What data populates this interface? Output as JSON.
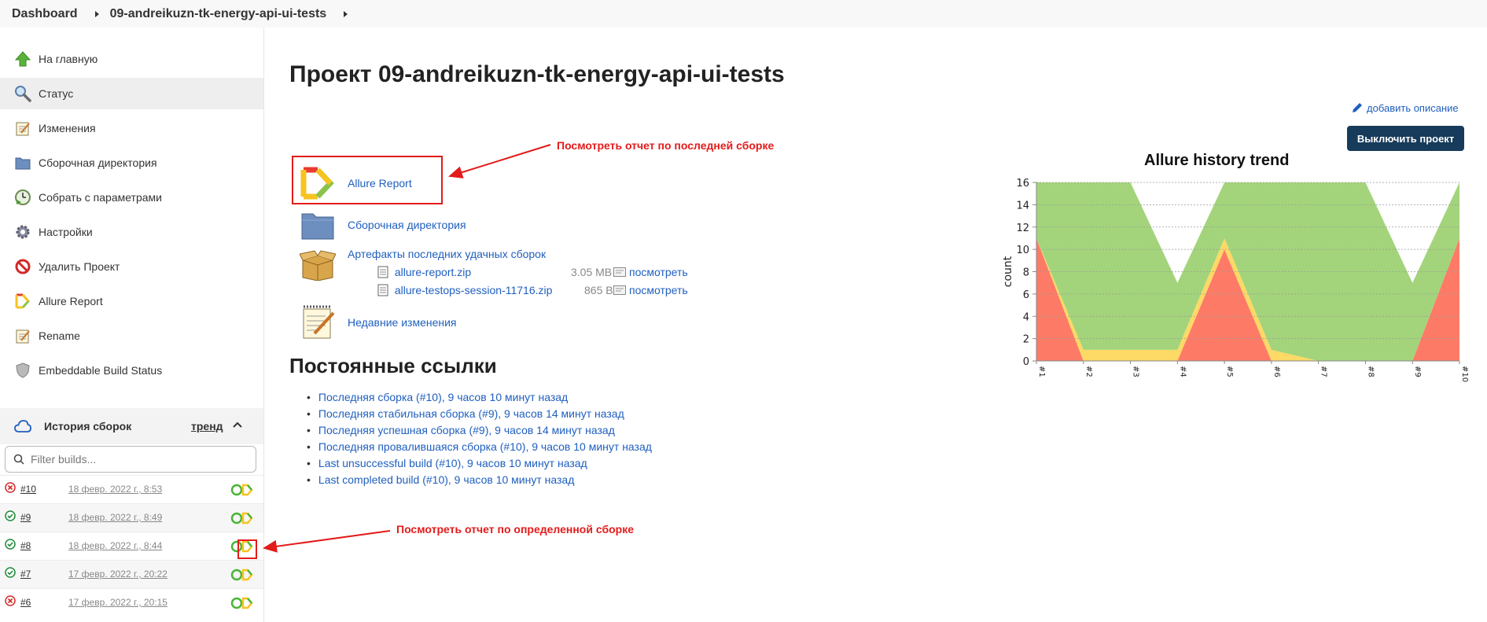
{
  "breadcrumb": {
    "items": [
      "Dashboard",
      "09-andreikuzn-tk-energy-api-ui-tests"
    ]
  },
  "sidebar": {
    "items": [
      {
        "label": "На главную",
        "icon": "up-arrow-icon"
      },
      {
        "label": "Статус",
        "icon": "search-icon"
      },
      {
        "label": "Изменения",
        "icon": "notepad-icon"
      },
      {
        "label": "Сборочная директория",
        "icon": "folder-icon"
      },
      {
        "label": "Собрать с параметрами",
        "icon": "clock-play-icon"
      },
      {
        "label": "Настройки",
        "icon": "gear-icon"
      },
      {
        "label": "Удалить Проект",
        "icon": "no-entry-icon"
      },
      {
        "label": "Allure Report",
        "icon": "allure-icon"
      },
      {
        "label": "Rename",
        "icon": "notepad-pen-icon"
      },
      {
        "label": "Embeddable Build Status",
        "icon": "shield-icon"
      }
    ]
  },
  "history": {
    "title": "История сборок",
    "trend": "тренд",
    "filter_placeholder": "Filter builds...",
    "builds": [
      {
        "num": "#10",
        "date": "18 февр. 2022 г., 8:53",
        "status": "failed"
      },
      {
        "num": "#9",
        "date": "18 февр. 2022 г., 8:49",
        "status": "success"
      },
      {
        "num": "#8",
        "date": "18 февр. 2022 г., 8:44",
        "status": "success"
      },
      {
        "num": "#7",
        "date": "17 февр. 2022 г., 20:22",
        "status": "success"
      },
      {
        "num": "#6",
        "date": "17 февр. 2022 г., 20:15",
        "status": "failed"
      }
    ]
  },
  "main": {
    "title": "Проект 09-andreikuzn-tk-energy-api-ui-tests",
    "add_description": "добавить описание",
    "disable_button": "Выключить проект",
    "links": {
      "allure": "Allure Report",
      "workspace": "Сборочная директория",
      "artifacts": "Артефакты последних удачных сборок",
      "recent_changes": "Недавние изменения"
    },
    "artifact_files": [
      {
        "name": "allure-report.zip",
        "size": "3.05 MB",
        "view": "посмотреть"
      },
      {
        "name": "allure-testops-session-11716.zip",
        "size": "865 B",
        "view": "посмотреть"
      }
    ],
    "permalinks_title": "Постоянные ссылки",
    "permalinks": [
      "Последняя сборка (#10), 9 часов 10 минут назад",
      "Последняя стабильная сборка (#9), 9 часов 14 минут назад",
      "Последняя успешная сборка (#9), 9 часов 14 минут назад",
      "Последняя провалившаяся сборка (#10), 9 часов 10 минут назад",
      "Last unsuccessful build (#10), 9 часов 10 минут назад",
      "Last completed build (#10), 9 часов 10 минут назад"
    ]
  },
  "annotations": {
    "last_build": "Посмотреть отчет по последней сборке",
    "specific_build": "Посмотреть отчет по определенной сборке"
  },
  "chart_data": {
    "type": "area",
    "title": "Allure history trend",
    "ylabel": "count",
    "xlabel": "",
    "ylim": [
      0,
      16
    ],
    "yticks": [
      0,
      2,
      4,
      6,
      8,
      10,
      12,
      14,
      16
    ],
    "categories": [
      "#1",
      "#2",
      "#3",
      "#4",
      "#5",
      "#6",
      "#7",
      "#8",
      "#9",
      "#10"
    ],
    "series": [
      {
        "values": [
          11,
          0,
          0,
          0,
          10,
          0,
          0,
          0,
          0,
          11
        ],
        "color": "#fd7b66"
      },
      {
        "values": [
          0,
          1,
          1,
          1,
          1,
          1,
          0,
          0,
          0,
          0
        ],
        "color": "#fdd966"
      },
      {
        "values": [
          5,
          15,
          15,
          6,
          5,
          15,
          16,
          16,
          7,
          5
        ],
        "color": "#a3d47b"
      }
    ],
    "grid": true
  }
}
